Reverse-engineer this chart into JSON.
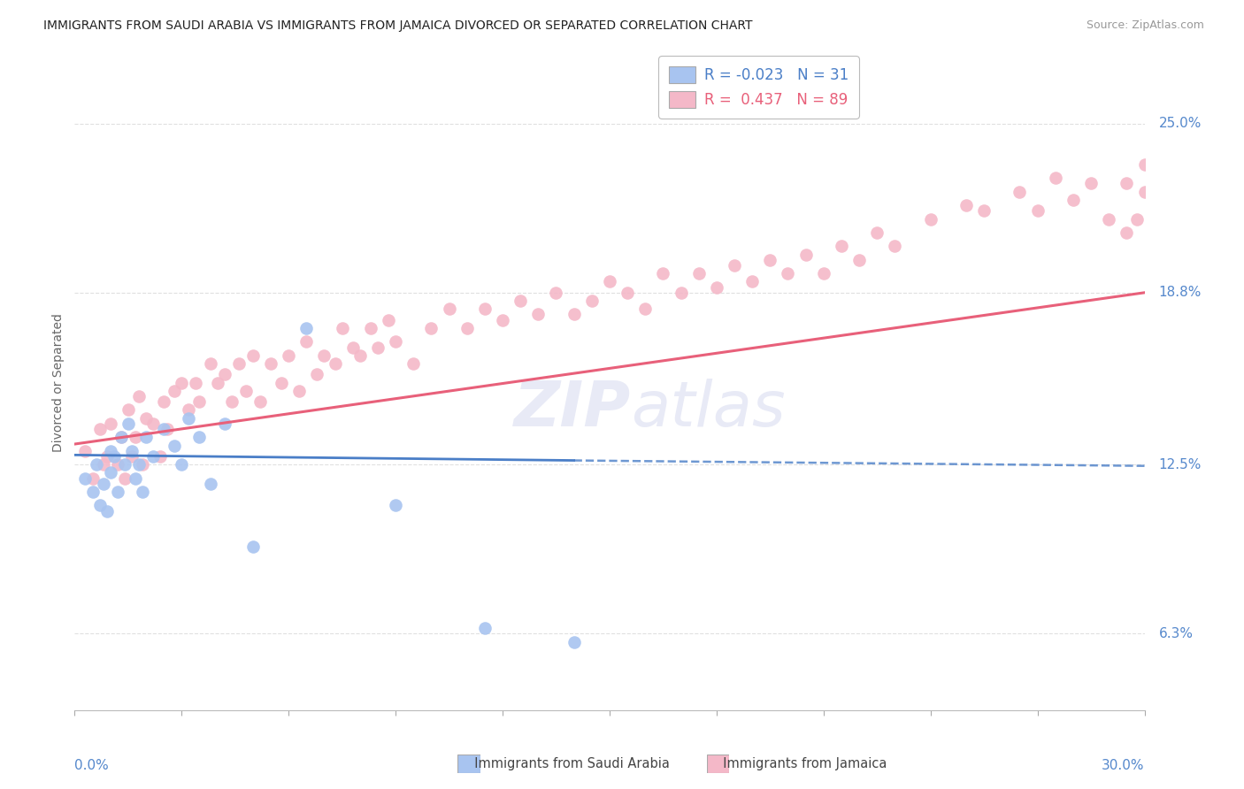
{
  "title": "IMMIGRANTS FROM SAUDI ARABIA VS IMMIGRANTS FROM JAMAICA DIVORCED OR SEPARATED CORRELATION CHART",
  "source": "Source: ZipAtlas.com",
  "ylabel": "Divorced or Separated",
  "yticks": [
    0.063,
    0.125,
    0.188,
    0.25
  ],
  "ytick_labels": [
    "6.3%",
    "12.5%",
    "18.8%",
    "25.0%"
  ],
  "xlim": [
    0.0,
    0.3
  ],
  "ylim": [
    0.035,
    0.275
  ],
  "legend_blue_r": "-0.023",
  "legend_blue_n": "31",
  "legend_pink_r": "0.437",
  "legend_pink_n": "89",
  "blue_color": "#a8c4f0",
  "pink_color": "#f4b8c8",
  "blue_line_color": "#4a7ec7",
  "pink_line_color": "#e8607a",
  "watermark_color": "#e8eaf6",
  "background_color": "#ffffff",
  "grid_color": "#e0e0e0",
  "blue_x": [
    0.003,
    0.005,
    0.006,
    0.007,
    0.008,
    0.009,
    0.01,
    0.01,
    0.011,
    0.012,
    0.013,
    0.014,
    0.015,
    0.016,
    0.017,
    0.018,
    0.019,
    0.02,
    0.022,
    0.025,
    0.028,
    0.03,
    0.032,
    0.035,
    0.038,
    0.042,
    0.05,
    0.065,
    0.09,
    0.115,
    0.14
  ],
  "blue_y": [
    0.12,
    0.115,
    0.125,
    0.11,
    0.118,
    0.108,
    0.13,
    0.122,
    0.128,
    0.115,
    0.135,
    0.125,
    0.14,
    0.13,
    0.12,
    0.125,
    0.115,
    0.135,
    0.128,
    0.138,
    0.132,
    0.125,
    0.142,
    0.135,
    0.118,
    0.14,
    0.095,
    0.175,
    0.11,
    0.065,
    0.06
  ],
  "pink_x": [
    0.003,
    0.005,
    0.007,
    0.008,
    0.009,
    0.01,
    0.012,
    0.013,
    0.014,
    0.015,
    0.016,
    0.017,
    0.018,
    0.019,
    0.02,
    0.022,
    0.024,
    0.025,
    0.026,
    0.028,
    0.03,
    0.032,
    0.034,
    0.035,
    0.038,
    0.04,
    0.042,
    0.044,
    0.046,
    0.048,
    0.05,
    0.052,
    0.055,
    0.058,
    0.06,
    0.063,
    0.065,
    0.068,
    0.07,
    0.073,
    0.075,
    0.078,
    0.08,
    0.083,
    0.085,
    0.088,
    0.09,
    0.095,
    0.1,
    0.105,
    0.11,
    0.115,
    0.12,
    0.125,
    0.13,
    0.135,
    0.14,
    0.145,
    0.15,
    0.155,
    0.16,
    0.165,
    0.17,
    0.175,
    0.18,
    0.185,
    0.19,
    0.195,
    0.2,
    0.205,
    0.21,
    0.215,
    0.22,
    0.225,
    0.23,
    0.24,
    0.25,
    0.255,
    0.265,
    0.27,
    0.275,
    0.28,
    0.285,
    0.29,
    0.295,
    0.298,
    0.3,
    0.3,
    0.295
  ],
  "pink_y": [
    0.13,
    0.12,
    0.138,
    0.125,
    0.128,
    0.14,
    0.125,
    0.135,
    0.12,
    0.145,
    0.128,
    0.135,
    0.15,
    0.125,
    0.142,
    0.14,
    0.128,
    0.148,
    0.138,
    0.152,
    0.155,
    0.145,
    0.155,
    0.148,
    0.162,
    0.155,
    0.158,
    0.148,
    0.162,
    0.152,
    0.165,
    0.148,
    0.162,
    0.155,
    0.165,
    0.152,
    0.17,
    0.158,
    0.165,
    0.162,
    0.175,
    0.168,
    0.165,
    0.175,
    0.168,
    0.178,
    0.17,
    0.162,
    0.175,
    0.182,
    0.175,
    0.182,
    0.178,
    0.185,
    0.18,
    0.188,
    0.18,
    0.185,
    0.192,
    0.188,
    0.182,
    0.195,
    0.188,
    0.195,
    0.19,
    0.198,
    0.192,
    0.2,
    0.195,
    0.202,
    0.195,
    0.205,
    0.2,
    0.21,
    0.205,
    0.215,
    0.22,
    0.218,
    0.225,
    0.218,
    0.23,
    0.222,
    0.228,
    0.215,
    0.21,
    0.215,
    0.225,
    0.235,
    0.228
  ],
  "blue_trendline_x0": 0.0,
  "blue_trendline_x_solid_end": 0.14,
  "blue_trendline_y0": 0.1285,
  "blue_trendline_y_solid_end": 0.1265,
  "blue_trendline_x_dash_end": 0.3,
  "blue_trendline_y_dash_end": 0.1245,
  "pink_trendline_x0": 0.0,
  "pink_trendline_y0": 0.1325,
  "pink_trendline_x1": 0.3,
  "pink_trendline_y1": 0.188
}
